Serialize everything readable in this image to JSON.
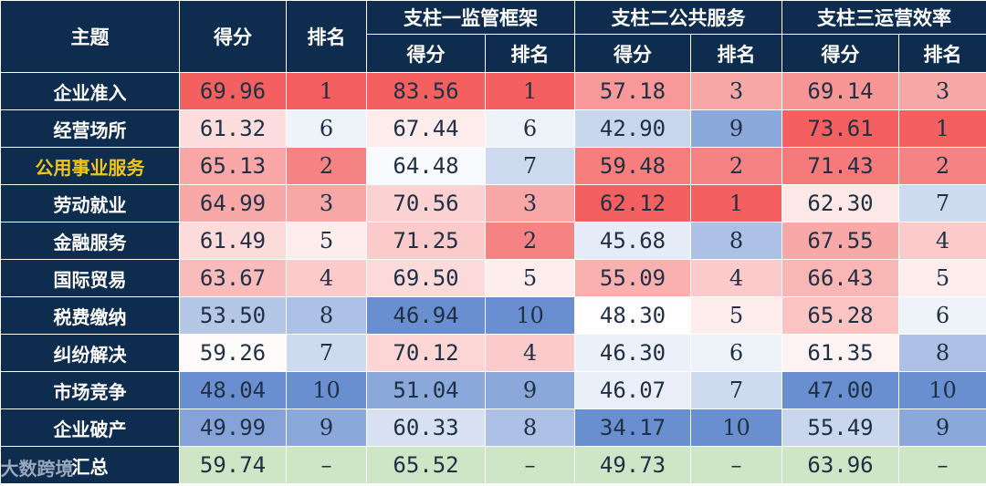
{
  "header": {
    "topic": "主题",
    "score": "得分",
    "rank": "排名",
    "groups": [
      "支柱一监管框架",
      "支柱二公共服务",
      "支柱三运营效率"
    ]
  },
  "rows": [
    {
      "name": "企业准入",
      "cells": [
        "69.96",
        "1",
        "83.56",
        "1",
        "57.18",
        "3",
        "69.14",
        "3"
      ]
    },
    {
      "name": "经营场所",
      "cells": [
        "61.32",
        "6",
        "67.44",
        "6",
        "42.90",
        "9",
        "73.61",
        "1"
      ]
    },
    {
      "name": "公用事业服务",
      "cells": [
        "65.13",
        "2",
        "64.48",
        "7",
        "59.48",
        "2",
        "71.43",
        "2"
      ]
    },
    {
      "name": "劳动就业",
      "cells": [
        "64.99",
        "3",
        "70.56",
        "3",
        "62.12",
        "1",
        "62.30",
        "7"
      ]
    },
    {
      "name": "金融服务",
      "cells": [
        "61.49",
        "5",
        "71.25",
        "2",
        "45.68",
        "8",
        "67.55",
        "4"
      ]
    },
    {
      "name": "国际贸易",
      "cells": [
        "63.67",
        "4",
        "69.50",
        "5",
        "55.09",
        "4",
        "66.43",
        "5"
      ]
    },
    {
      "name": "税费缴纳",
      "cells": [
        "53.50",
        "8",
        "46.94",
        "10",
        "48.30",
        "5",
        "65.28",
        "6"
      ]
    },
    {
      "name": "纠纷解决",
      "cells": [
        "59.26",
        "7",
        "70.12",
        "4",
        "46.30",
        "6",
        "61.35",
        "8"
      ]
    },
    {
      "name": "市场竞争",
      "cells": [
        "48.04",
        "10",
        "51.04",
        "9",
        "46.07",
        "7",
        "47.00",
        "10"
      ]
    },
    {
      "name": "企业破产",
      "cells": [
        "49.99",
        "9",
        "60.33",
        "8",
        "34.17",
        "10",
        "55.49",
        "9"
      ]
    }
  ],
  "summary": {
    "name": "汇总",
    "cells": [
      "59.74",
      "–",
      "65.52",
      "–",
      "49.73",
      "–",
      "63.96",
      "–"
    ]
  },
  "watermark": "大数跨境",
  "highlight_row": "公用事业服务",
  "colors": {
    "header_bg": "#0e2d4e",
    "header_text": "#ffffff",
    "highlight_text": "#f0c419",
    "summary_bg": "#cfe6c6",
    "high_red": "#f4605f",
    "low_blue": "#6a8fd0"
  }
}
